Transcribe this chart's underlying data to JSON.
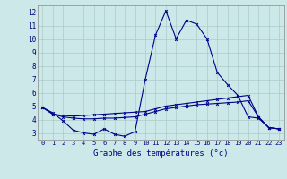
{
  "bg_color": "#cce8e8",
  "grid_color": "#aacccc",
  "line_color": "#00008b",
  "x_ticks": [
    0,
    1,
    2,
    3,
    4,
    5,
    6,
    7,
    8,
    9,
    10,
    11,
    12,
    13,
    14,
    15,
    16,
    17,
    18,
    19,
    20,
    21,
    22,
    23
  ],
  "ylim": [
    2.5,
    12.5
  ],
  "yticks": [
    3,
    4,
    5,
    6,
    7,
    8,
    9,
    10,
    11,
    12
  ],
  "line1": [
    4.9,
    4.5,
    3.9,
    3.2,
    3.0,
    2.9,
    3.3,
    2.9,
    2.75,
    3.1,
    7.0,
    10.3,
    12.1,
    10.0,
    11.4,
    11.1,
    10.0,
    7.5,
    6.6,
    5.8,
    4.2,
    4.1,
    3.4,
    3.3
  ],
  "line2": [
    4.9,
    4.4,
    4.3,
    4.25,
    4.3,
    4.35,
    4.4,
    4.45,
    4.5,
    4.55,
    4.6,
    4.8,
    5.0,
    5.1,
    5.2,
    5.3,
    5.4,
    5.5,
    5.6,
    5.7,
    5.8,
    4.2,
    3.4,
    3.3
  ],
  "line3": [
    4.9,
    4.4,
    4.2,
    4.1,
    4.05,
    4.05,
    4.1,
    4.1,
    4.15,
    4.2,
    4.4,
    4.6,
    4.8,
    4.9,
    5.0,
    5.1,
    5.15,
    5.2,
    5.25,
    5.3,
    5.4,
    4.2,
    3.4,
    3.3
  ],
  "xlabel": "Graphe des températures (°c)"
}
